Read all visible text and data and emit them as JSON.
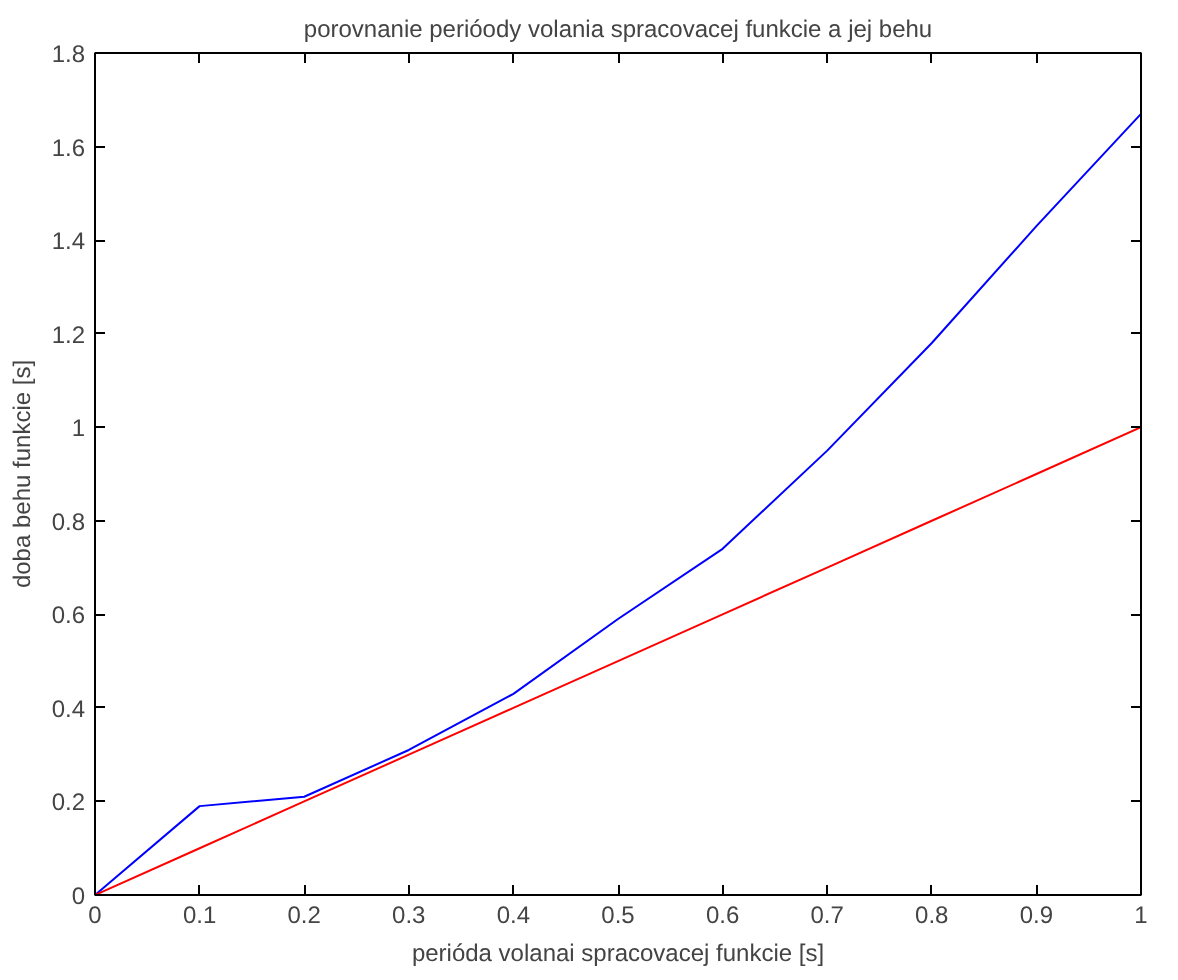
{
  "chart_data": {
    "type": "line",
    "title": "porovnanie perióody volania spracovacej funkcie a jej behu",
    "xlabel": "perióda volanai spracovacej funkcie [s]",
    "ylabel": "doba behu funkcie [s]",
    "x": [
      0,
      0.1,
      0.2,
      0.3,
      0.4,
      0.5,
      0.6,
      0.7,
      0.8,
      0.9,
      1.0
    ],
    "series": [
      {
        "color": "#0000ff",
        "values": [
          0,
          0.19,
          0.21,
          0.31,
          0.43,
          0.59,
          0.74,
          0.95,
          1.18,
          1.43,
          1.67
        ]
      },
      {
        "color": "#ff0000",
        "values": [
          0,
          0.1,
          0.2,
          0.3,
          0.4,
          0.5,
          0.6,
          0.7,
          0.8,
          0.9,
          1.0
        ]
      }
    ],
    "xlim": [
      0,
      1
    ],
    "ylim": [
      0,
      1.8
    ],
    "xticks": [
      0,
      0.1,
      0.2,
      0.3,
      0.4,
      0.5,
      0.6,
      0.7,
      0.8,
      0.9,
      1
    ],
    "yticks": [
      0,
      0.2,
      0.4,
      0.6,
      0.8,
      1,
      1.2,
      1.4,
      1.6,
      1.8
    ],
    "grid": false,
    "marker": "none",
    "line_style": "solid"
  }
}
